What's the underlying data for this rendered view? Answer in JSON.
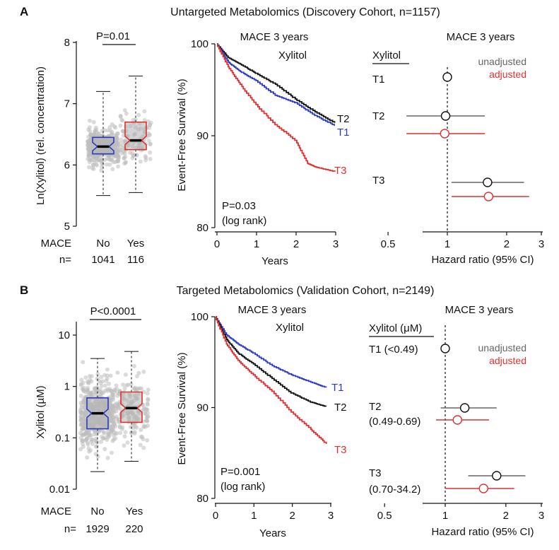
{
  "panels": {
    "A": {
      "letter": "A",
      "title": "Untargeted Metabolomics (Discovery Cohort, n=1157)",
      "box": {
        "ylabel": "Ln(Xylitol) (rel. concentration)",
        "yticks": [
          "5",
          "6",
          "7",
          "8"
        ],
        "pvalue": "P=0.01",
        "row_label": "MACE",
        "n_label": "n=",
        "groups": [
          {
            "name": "No",
            "n": "1041",
            "color": "#2b3bbf"
          },
          {
            "name": "Yes",
            "n": "116",
            "color": "#e03030"
          }
        ]
      },
      "km": {
        "title": "MACE 3 years",
        "inner_label": "Xylitol",
        "ylabel": "Event-Free Survival (%)",
        "xlabel": "Years",
        "yticks": [
          "80",
          "90",
          "100"
        ],
        "xticks": [
          "0",
          "1",
          "2",
          "3"
        ],
        "pvalue_line1": "P=0.03",
        "pvalue_line2": "(log rank)",
        "curve_labels": [
          "T2",
          "T1",
          "T3"
        ]
      },
      "forest": {
        "title": "MACE 3 years",
        "header": "Xylitol",
        "legend_unadj": "unadjusted",
        "legend_adj": "adjusted",
        "xlabel": "Hazard ratio (95% CI)",
        "xticks": [
          "0.5",
          "1",
          "2",
          "3"
        ],
        "rows": [
          {
            "label": "T1",
            "sublabel": ""
          },
          {
            "label": "T2",
            "sublabel": ""
          },
          {
            "label": "T3",
            "sublabel": ""
          }
        ]
      }
    },
    "B": {
      "letter": "B",
      "title": "Targeted Metabolomics (Validation Cohort, n=2149)",
      "box": {
        "ylabel": "Xylitol (µM)",
        "yticks": [
          "0.01",
          "0.1",
          "1",
          "10"
        ],
        "pvalue": "P<0.0001",
        "row_label": "MACE",
        "n_label": "n=",
        "groups": [
          {
            "name": "No",
            "n": "1929",
            "color": "#2b3bbf"
          },
          {
            "name": "Yes",
            "n": "220",
            "color": "#e03030"
          }
        ]
      },
      "km": {
        "title": "MACE 3 years",
        "inner_label": "Xylitol",
        "ylabel": "Event-Free Survival (%)",
        "xlabel": "Years",
        "yticks": [
          "80",
          "90",
          "100"
        ],
        "xticks": [
          "0",
          "1",
          "2",
          "3"
        ],
        "pvalue_line1": "P=0.001",
        "pvalue_line2": "(log rank)",
        "curve_labels": [
          "T1",
          "T2",
          "T3"
        ]
      },
      "forest": {
        "title": "MACE 3 years",
        "header": "Xylitol (μM)",
        "legend_unadj": "unadjusted",
        "legend_adj": "adjusted",
        "xlabel": "Hazard ratio (95% CI)",
        "xticks": [
          "0.5",
          "1",
          "2",
          "3"
        ],
        "rows": [
          {
            "label": "T1 (<0.49)",
            "sublabel": ""
          },
          {
            "label": "T2",
            "sublabel": "(0.49-0.69)"
          },
          {
            "label": "T3",
            "sublabel": "(0.70-34.2)"
          }
        ]
      }
    }
  },
  "colors": {
    "T1": "#2b3bbf",
    "T2": "#111111",
    "T3": "#e03030",
    "unadjusted": "#666666",
    "adjusted": "#e03030",
    "points": "#bdbdbd"
  },
  "chart_data": [
    {
      "id": "A-box",
      "type": "box",
      "ylabel": "Ln(Xylitol) (rel. concentration)",
      "ylim": [
        5,
        8
      ],
      "categories": [
        "No",
        "Yes"
      ],
      "series": [
        {
          "name": "No",
          "n": 1041,
          "min": 5.5,
          "q1": 6.18,
          "median": 6.3,
          "q3": 6.45,
          "max": 7.2
        },
        {
          "name": "Yes",
          "n": 116,
          "min": 5.55,
          "q1": 6.25,
          "median": 6.4,
          "q3": 6.7,
          "max": 7.45
        }
      ],
      "annotation": "P=0.01"
    },
    {
      "id": "A-km",
      "type": "line",
      "title": "MACE 3 years",
      "xlabel": "Years",
      "ylabel": "Event-Free Survival (%)",
      "xlim": [
        0,
        3
      ],
      "ylim": [
        80,
        100
      ],
      "series": [
        {
          "name": "T2",
          "x": [
            0,
            0.3,
            0.6,
            1.0,
            1.5,
            2.0,
            2.5,
            3.0
          ],
          "y": [
            100,
            98.5,
            97.8,
            96.8,
            95.6,
            94.0,
            92.6,
            91.4
          ]
        },
        {
          "name": "T1",
          "x": [
            0,
            0.3,
            0.6,
            1.0,
            1.5,
            2.0,
            2.5,
            3.0
          ],
          "y": [
            100,
            98.0,
            97.0,
            96.0,
            94.4,
            93.6,
            92.2,
            91.1
          ]
        },
        {
          "name": "T3",
          "x": [
            0,
            0.3,
            0.6,
            1.0,
            1.5,
            2.0,
            2.3,
            2.5,
            3.0
          ],
          "y": [
            100,
            97.5,
            95.6,
            93.4,
            91.2,
            89.5,
            87.0,
            86.6,
            86.1
          ]
        }
      ],
      "annotation": "P=0.03 (log rank)"
    },
    {
      "id": "A-forest",
      "type": "scatter",
      "title": "MACE 3 years",
      "xlabel": "Hazard ratio (95% CI)",
      "xscale": "log",
      "xlim": [
        0.5,
        3
      ],
      "reference_line": 1,
      "rows": [
        {
          "name": "T1",
          "unadjusted": {
            "hr": 1.0,
            "lo": 1.0,
            "hi": 1.0
          },
          "adjusted": null
        },
        {
          "name": "T2",
          "unadjusted": {
            "hr": 0.98,
            "lo": 0.62,
            "hi": 1.55
          },
          "adjusted": {
            "hr": 0.97,
            "lo": 0.62,
            "hi": 1.55
          }
        },
        {
          "name": "T3",
          "unadjusted": {
            "hr": 1.6,
            "lo": 1.05,
            "hi": 2.45
          },
          "adjusted": {
            "hr": 1.62,
            "lo": 1.05,
            "hi": 2.6
          }
        }
      ]
    },
    {
      "id": "B-box",
      "type": "box",
      "ylabel": "Xylitol (µM)",
      "yscale": "log",
      "ylim": [
        0.01,
        20
      ],
      "categories": [
        "No",
        "Yes"
      ],
      "series": [
        {
          "name": "No",
          "n": 1929,
          "min": 0.022,
          "q1": 0.15,
          "median": 0.3,
          "q3": 0.6,
          "max": 3.5
        },
        {
          "name": "Yes",
          "n": 220,
          "min": 0.035,
          "q1": 0.2,
          "median": 0.38,
          "q3": 0.78,
          "max": 4.8
        }
      ],
      "annotation": "P<0.0001"
    },
    {
      "id": "B-km",
      "type": "line",
      "title": "MACE 3 years",
      "xlabel": "Years",
      "ylabel": "Event-Free Survival (%)",
      "xlim": [
        0,
        3
      ],
      "ylim": [
        80,
        100
      ],
      "series": [
        {
          "name": "T1",
          "x": [
            0,
            0.3,
            0.6,
            1.0,
            1.5,
            2.0,
            2.5,
            2.9
          ],
          "y": [
            100,
            98.0,
            97.0,
            96.0,
            94.6,
            93.6,
            92.8,
            92.2
          ]
        },
        {
          "name": "T2",
          "x": [
            0,
            0.3,
            0.6,
            1.0,
            1.5,
            2.0,
            2.5,
            2.9
          ],
          "y": [
            100,
            97.5,
            96.0,
            94.8,
            93.2,
            91.6,
            90.6,
            90.1
          ]
        },
        {
          "name": "T3",
          "x": [
            0,
            0.3,
            0.6,
            1.0,
            1.5,
            2.0,
            2.5,
            2.9
          ],
          "y": [
            100,
            97.0,
            95.2,
            93.6,
            91.8,
            89.5,
            87.6,
            86.0
          ]
        }
      ],
      "annotation": "P=0.001 (log rank)"
    },
    {
      "id": "B-forest",
      "type": "scatter",
      "title": "MACE 3 years",
      "xlabel": "Hazard ratio (95% CI)",
      "xscale": "log",
      "xlim": [
        0.5,
        3
      ],
      "reference_line": 1,
      "rows": [
        {
          "name": "T1 (<0.49)",
          "unadjusted": {
            "hr": 1.0,
            "lo": 1.0,
            "hi": 1.0
          },
          "adjusted": null
        },
        {
          "name": "T2 (0.49-0.69)",
          "unadjusted": {
            "hr": 1.25,
            "lo": 0.95,
            "hi": 1.8
          },
          "adjusted": {
            "hr": 1.15,
            "lo": 0.9,
            "hi": 1.65
          }
        },
        {
          "name": "T3 (0.70-34.2)",
          "unadjusted": {
            "hr": 1.8,
            "lo": 1.3,
            "hi": 2.5
          },
          "adjusted": {
            "hr": 1.55,
            "lo": 1.0,
            "hi": 2.2
          }
        }
      ]
    }
  ]
}
